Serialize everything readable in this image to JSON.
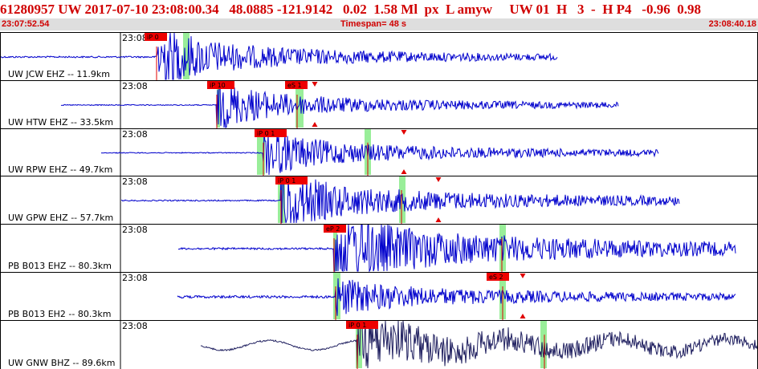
{
  "header": {
    "title": "61280957 UW 2017-07-10 23:08:00.34   48.0885 -121.9142   0.02  1.58 Ml  px  L amyw     UW 01  H   3  -  H P4   -0.96  0.98",
    "start_time": "23:07:52.54",
    "timespan": "Timespan=  48 s",
    "end_time": "23:08:40.18"
  },
  "colors": {
    "trace": "#0000cc",
    "trace_dark": "#202060",
    "pick_box": "#ee0000",
    "pick_band": "#99ee99",
    "header_text": "#d00000"
  },
  "traces": [
    {
      "label": "UW JCW EHZ -- 11.9km",
      "time": "23:08",
      "picks": [
        {
          "text": "iP 0",
          "type": "P",
          "band": true
        }
      ]
    },
    {
      "label": "UW HTW EHZ -- 33.5km",
      "time": "23:08",
      "picks": [
        {
          "text": "iP 10",
          "type": "P",
          "band": true
        },
        {
          "text": "eS 1",
          "type": "S",
          "band": true
        }
      ]
    },
    {
      "label": "UW RPW EHZ -- 49.7km",
      "time": "23:08",
      "picks": [
        {
          "text": "iP 0 1",
          "type": "P",
          "band": true
        },
        {
          "text": "",
          "type": "S",
          "band": true
        }
      ]
    },
    {
      "label": "UW GPW EHZ -- 57.7km",
      "time": "23:08",
      "picks": [
        {
          "text": "iP 0 1",
          "type": "P",
          "band": true
        },
        {
          "text": "",
          "type": "S",
          "band": true
        }
      ]
    },
    {
      "label": "PB B013 EHZ -- 80.3km",
      "time": "23:08",
      "picks": [
        {
          "text": "eP 2",
          "type": "P",
          "band": true
        },
        {
          "text": "",
          "type": "S",
          "band": true
        }
      ]
    },
    {
      "label": "PB B013 EH2 -- 80.3km",
      "time": "23:08",
      "picks": [
        {
          "text": "",
          "type": "P",
          "band": true
        },
        {
          "text": "eS 2",
          "type": "S",
          "band": true
        }
      ]
    },
    {
      "label": "UW GNW BHZ -- 89.6km",
      "time": "23:08",
      "picks": [
        {
          "text": "iP 0 1",
          "type": "P",
          "band": true
        },
        {
          "text": "",
          "type": "S",
          "band": true
        }
      ]
    }
  ]
}
